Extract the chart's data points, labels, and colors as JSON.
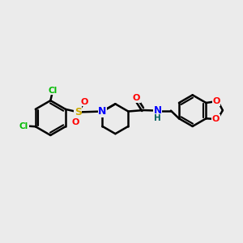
{
  "background_color": "#ebebeb",
  "bond_color": "#000000",
  "bond_width": 1.8,
  "cl_color": "#00bb00",
  "o_color": "#ff0000",
  "n_color": "#0000ff",
  "s_color": "#ccaa00",
  "h_color": "#006060",
  "figsize": [
    3.0,
    3.0
  ],
  "dpi": 100,
  "xlim": [
    0,
    10
  ],
  "ylim": [
    2,
    8
  ]
}
